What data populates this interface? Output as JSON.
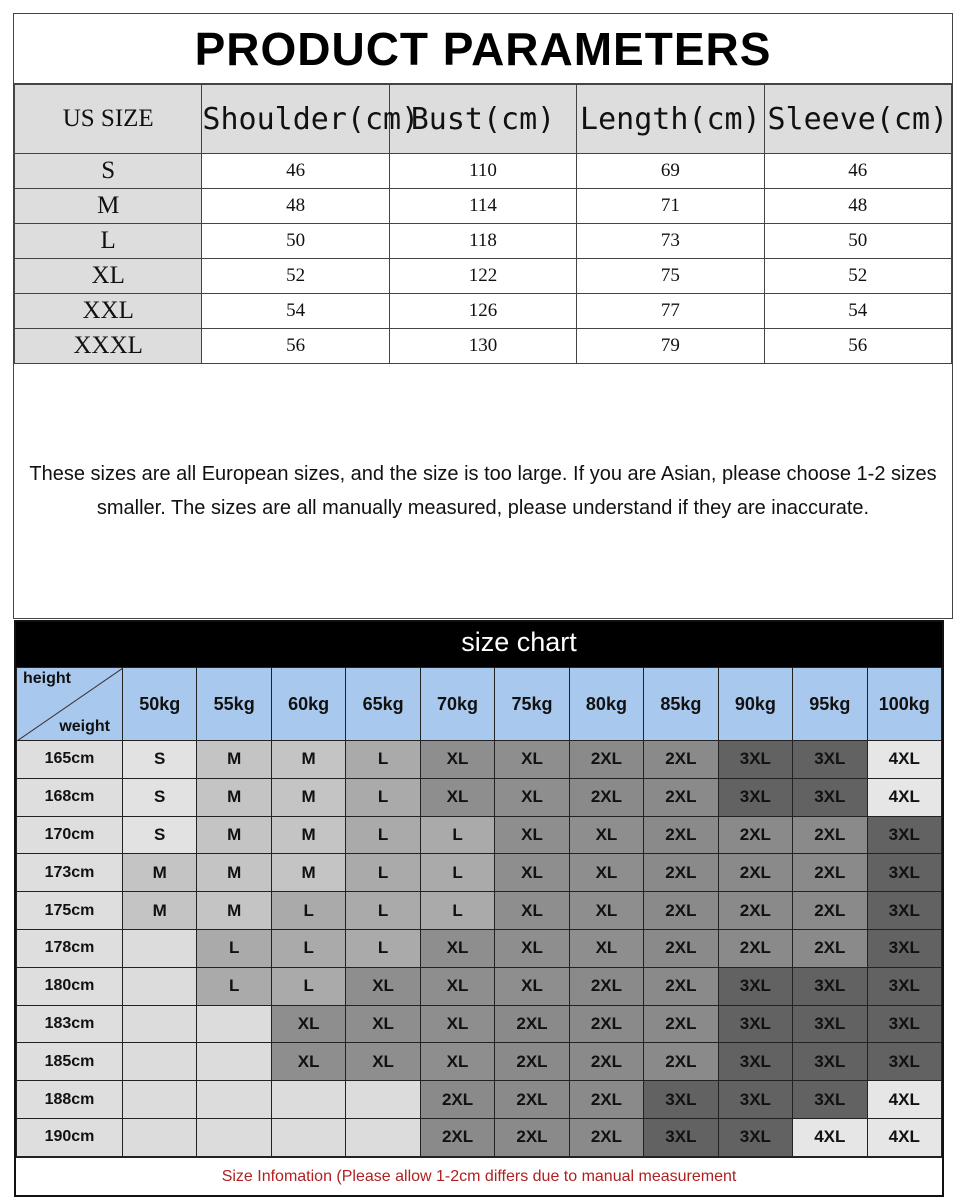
{
  "params": {
    "title": "PRODUCT PARAMETERS",
    "headers": [
      "US SIZE",
      "Shoulder(cm)",
      "Bust(cm)",
      "Length(cm)",
      "Sleeve(cm)"
    ],
    "rows": [
      [
        "S",
        "46",
        "110",
        "69",
        "46"
      ],
      [
        "M",
        "48",
        "114",
        "71",
        "48"
      ],
      [
        "L",
        "50",
        "118",
        "73",
        "50"
      ],
      [
        "XL",
        "52",
        "122",
        "75",
        "52"
      ],
      [
        "XXL",
        "54",
        "126",
        "77",
        "54"
      ],
      [
        "XXXL",
        "56",
        "130",
        "79",
        "56"
      ]
    ],
    "note": "These sizes are all European sizes, and the size is too large. If you are Asian, please choose 1-2 sizes smaller. The sizes are all manually measured, please understand if they are inaccurate."
  },
  "chart": {
    "title": "size chart",
    "corner_top": "height",
    "corner_bottom": "weight",
    "weights": [
      "50kg",
      "55kg",
      "60kg",
      "65kg",
      "70kg",
      "75kg",
      "80kg",
      "85kg",
      "90kg",
      "95kg",
      "100kg"
    ],
    "rows": [
      {
        "height": "165cm",
        "sizes": [
          "S",
          "M",
          "M",
          "L",
          "XL",
          "XL",
          "2XL",
          "2XL",
          "3XL",
          "3XL",
          "4XL"
        ]
      },
      {
        "height": "168cm",
        "sizes": [
          "S",
          "M",
          "M",
          "L",
          "XL",
          "XL",
          "2XL",
          "2XL",
          "3XL",
          "3XL",
          "4XL"
        ]
      },
      {
        "height": "170cm",
        "sizes": [
          "S",
          "M",
          "M",
          "L",
          "L",
          "XL",
          "XL",
          "2XL",
          "2XL",
          "2XL",
          "3XL"
        ]
      },
      {
        "height": "173cm",
        "sizes": [
          "M",
          "M",
          "M",
          "L",
          "L",
          "XL",
          "XL",
          "2XL",
          "2XL",
          "2XL",
          "3XL"
        ]
      },
      {
        "height": "175cm",
        "sizes": [
          "M",
          "M",
          "L",
          "L",
          "L",
          "XL",
          "XL",
          "2XL",
          "2XL",
          "2XL",
          "3XL"
        ]
      },
      {
        "height": "178cm",
        "sizes": [
          "",
          "L",
          "L",
          "L",
          "XL",
          "XL",
          "XL",
          "2XL",
          "2XL",
          "2XL",
          "3XL"
        ]
      },
      {
        "height": "180cm",
        "sizes": [
          "",
          "L",
          "L",
          "XL",
          "XL",
          "XL",
          "2XL",
          "2XL",
          "3XL",
          "3XL",
          "3XL"
        ]
      },
      {
        "height": "183cm",
        "sizes": [
          "",
          "",
          "XL",
          "XL",
          "XL",
          "2XL",
          "2XL",
          "2XL",
          "3XL",
          "3XL",
          "3XL"
        ]
      },
      {
        "height": "185cm",
        "sizes": [
          "",
          "",
          "XL",
          "XL",
          "XL",
          "2XL",
          "2XL",
          "2XL",
          "3XL",
          "3XL",
          "3XL"
        ]
      },
      {
        "height": "188cm",
        "sizes": [
          "",
          "",
          "",
          "",
          "2XL",
          "2XL",
          "2XL",
          "3XL",
          "3XL",
          "3XL",
          "4XL"
        ]
      },
      {
        "height": "190cm",
        "sizes": [
          "",
          "",
          "",
          "",
          "2XL",
          "2XL",
          "2XL",
          "3XL",
          "3XL",
          "4XL",
          "4XL"
        ]
      }
    ],
    "colors": {
      "": "#dcdcdc",
      "S": "#e2e2e2",
      "M": "#c4c4c4",
      "L": "#aaaaaa",
      "XL": "#8e8e8e",
      "2XL": "#8a8a8a",
      "3XL": "#626262",
      "4XL": "#e6e6e6",
      "header": "#a8c8ee"
    },
    "footer": "Size Infomation  (Please allow 1-2cm differs due to manual measurement"
  }
}
